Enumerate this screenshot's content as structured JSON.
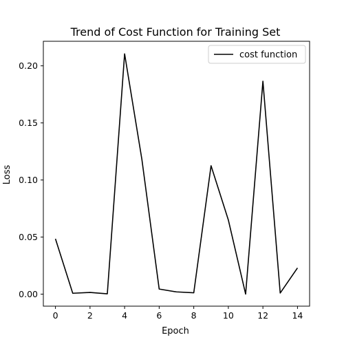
{
  "chart_data": {
    "type": "line",
    "title": "Trend of Cost Function for Training Set",
    "xlabel": "Epoch",
    "ylabel": "Loss",
    "xlim": [
      -0.7,
      14.7
    ],
    "ylim": [
      -0.0105,
      0.2215
    ],
    "xticks": [
      0,
      2,
      4,
      6,
      8,
      10,
      12,
      14
    ],
    "xtick_labels": [
      "0",
      "2",
      "4",
      "6",
      "8",
      "10",
      "12",
      "14"
    ],
    "yticks": [
      0.0,
      0.05,
      0.1,
      0.15,
      0.2
    ],
    "ytick_labels": [
      "0.00",
      "0.05",
      "0.10",
      "0.15",
      "0.20"
    ],
    "grid": false,
    "legend": {
      "position": "top-right"
    },
    "series": [
      {
        "name": "cost function",
        "color": "#000000",
        "x": [
          0,
          1,
          2,
          3,
          4,
          5,
          6,
          7,
          8,
          9,
          10,
          11,
          12,
          13,
          14
        ],
        "y": [
          0.0485,
          0.0008,
          0.0015,
          0.0003,
          0.2105,
          0.118,
          0.0045,
          0.002,
          0.0012,
          0.1125,
          0.065,
          0.0001,
          0.1865,
          0.001,
          0.023
        ]
      }
    ]
  }
}
